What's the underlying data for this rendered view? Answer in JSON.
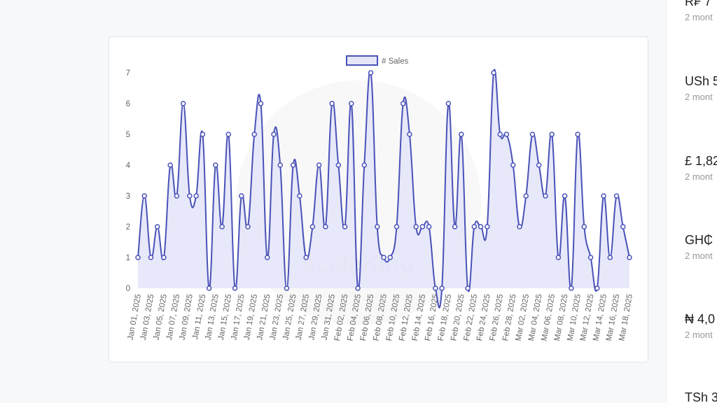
{
  "chart_data": {
    "type": "line",
    "legend": "# Sales",
    "watermark": "scaleKing",
    "color": "#4a52b8",
    "fill": "#e4e6f8",
    "categories": [
      "Jan 01, 2025",
      null,
      "Jan 03, 2025",
      null,
      "Jan 05, 2025",
      null,
      "Jan 07, 2025",
      null,
      "Jan 09, 2025",
      null,
      "Jan 11, 2025",
      null,
      "Jan 13, 2025",
      null,
      "Jan 15, 2025",
      null,
      "Jan 17, 2025",
      null,
      "Jan 19, 2025",
      null,
      "Jan 21, 2025",
      null,
      "Jan 23, 2025",
      null,
      "Jan 25, 2025",
      null,
      "Jan 27, 2025",
      null,
      "Jan 29, 2025",
      null,
      "Jan 31, 2025",
      null,
      "Feb 02, 2025",
      null,
      "Feb 04, 2025",
      null,
      "Feb 06, 2025",
      null,
      "Feb 08, 2025",
      null,
      "Feb 10, 2025",
      null,
      "Feb 12, 2025",
      null,
      "Feb 14, 2025",
      null,
      "Feb 16, 2025",
      null,
      "Feb 18, 2025",
      null,
      "Feb 20, 2025",
      null,
      "Feb 22, 2025",
      null,
      "Feb 24, 2025",
      null,
      "Feb 26, 2025",
      null,
      "Feb 28, 2025",
      null,
      "Mar 02, 2025",
      null,
      "Mar 04, 2025",
      null,
      "Mar 06, 2025",
      null,
      "Mar 08, 2025",
      null,
      "Mar 10, 2025",
      null,
      "Mar 12, 2025",
      null,
      "Mar 14, 2025",
      null,
      "Mar 16, 2025",
      null,
      "Mar 18, 2025"
    ],
    "values": [
      1,
      3,
      1,
      2,
      1,
      4,
      3,
      6,
      3,
      3,
      5,
      0,
      4,
      2,
      5,
      0,
      3,
      2,
      5,
      6,
      1,
      5,
      4,
      0,
      4,
      3,
      1,
      2,
      4,
      2,
      6,
      4,
      2,
      6,
      0,
      4,
      7,
      2,
      1,
      1,
      2,
      6,
      5,
      2,
      2,
      2,
      0,
      0,
      6,
      2,
      5,
      0,
      2,
      2,
      2,
      7,
      5,
      5,
      4,
      2,
      3,
      5,
      4,
      3,
      5,
      1,
      3,
      0,
      5,
      2,
      1,
      0,
      3,
      1,
      3,
      2,
      1
    ],
    "ylim": [
      0,
      7
    ],
    "yticks": [
      0,
      1,
      2,
      3,
      4,
      5,
      6,
      7
    ],
    "grid": false
  },
  "sidebar": [
    {
      "amount": "R₣ 7",
      "time": "2 mont"
    },
    {
      "amount": "USh 5",
      "time": "2 mont"
    },
    {
      "amount": "£ 1,82",
      "time": "2 mont"
    },
    {
      "amount": "GH₵",
      "time": "2 mont"
    },
    {
      "amount": "₦ 4,0",
      "time": "2 mont"
    },
    {
      "amount": "TSh 3",
      "time": ""
    }
  ]
}
